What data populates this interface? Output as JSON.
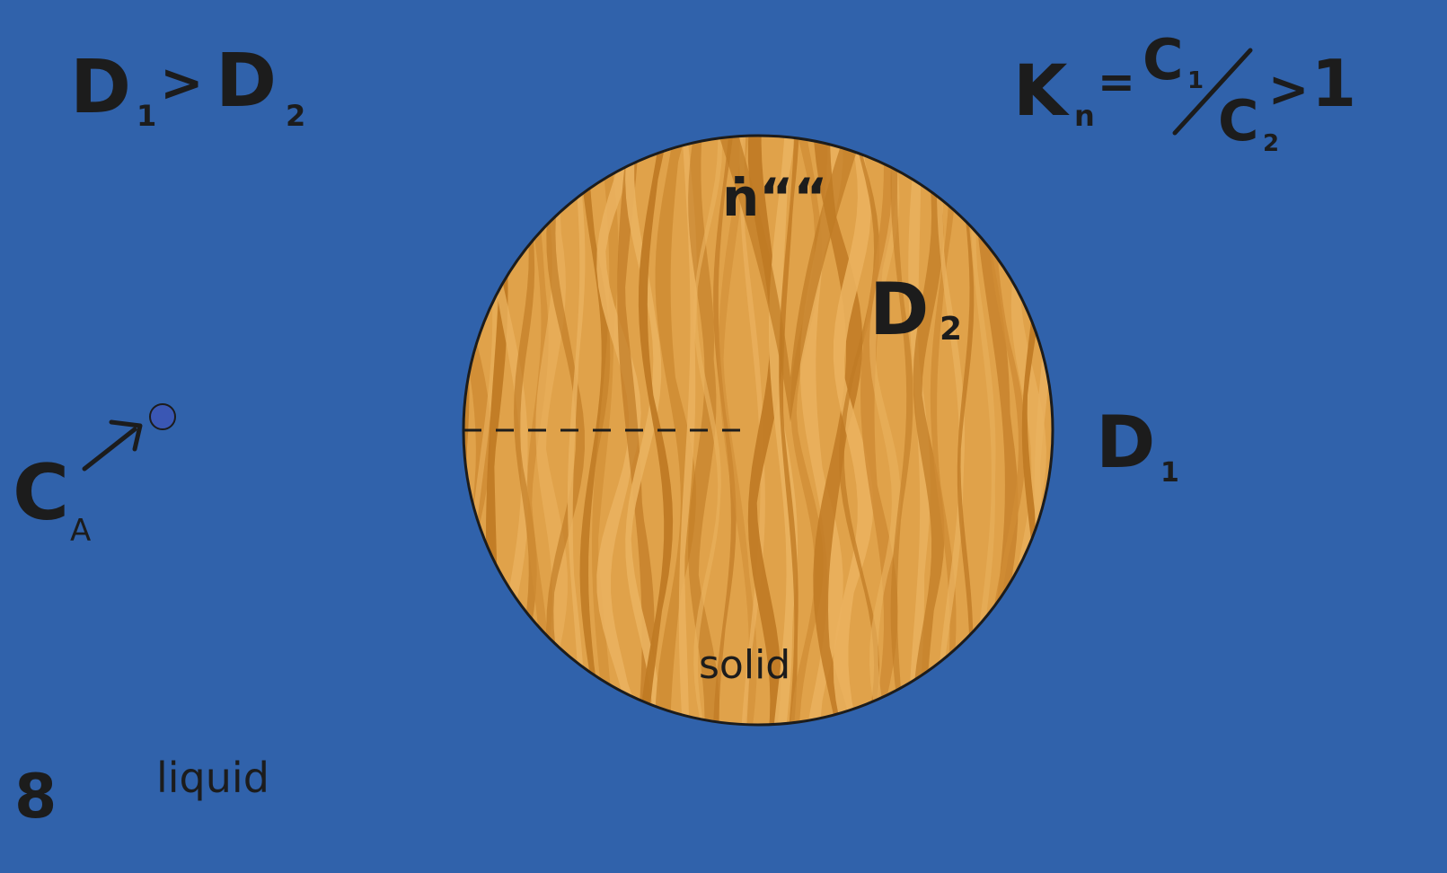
{
  "colors": {
    "liquid": "#3062ab",
    "solid_base": "#e0a24a",
    "solid_grain_dark": "#bf7a24",
    "solid_grain_mid": "#cf8c34",
    "solid_grain_light": "#eab25f",
    "ink": "#1c1c1c",
    "particle": "#3a57b4"
  },
  "labels": {
    "diffusivity_relation": {
      "d1_letter": "D",
      "d1_sub": "1",
      "relation": ">",
      "d2_letter": "D",
      "d2_sub": "2"
    },
    "partition_coefficient": {
      "k_letter": "K",
      "k_sub": "n",
      "equals": "=",
      "c1_letter": "C",
      "c1_sub": "1",
      "c2_letter": "C",
      "c2_sub": "2",
      "relation": ">",
      "one": "1"
    },
    "flux": "ṅ““",
    "d2_inside": {
      "letter": "D",
      "sub": "2"
    },
    "d1_outside": {
      "letter": "D",
      "sub": "1"
    },
    "concentration": {
      "letter": "C",
      "sub": "A"
    },
    "solid": "solid",
    "liquid": "liquid",
    "figure_number": "8"
  },
  "icons": {
    "particle": "particle-dot-icon",
    "arrow": "arrow-up-right-icon"
  }
}
